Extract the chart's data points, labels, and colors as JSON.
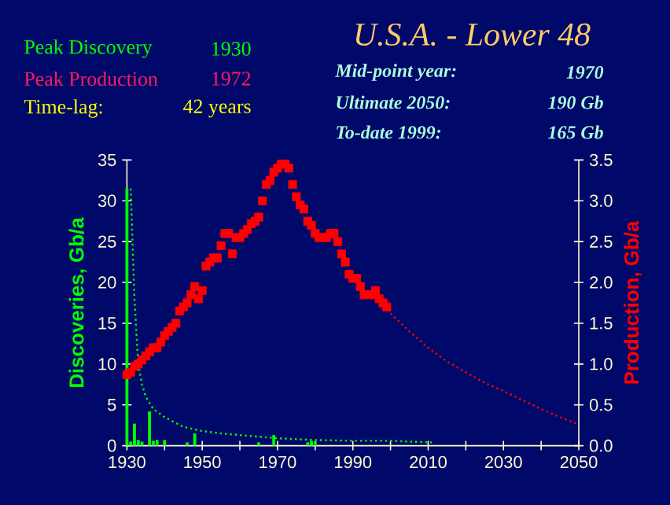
{
  "chart_data": {
    "type": "bar",
    "title": "U.S.A. - Lower 48",
    "annotations": [
      "Peak Discovery",
      "1930",
      "Peak Production",
      "1972",
      "Time-lag:",
      "42 years",
      "Mid-point year:",
      "1970",
      "Ultimate  2050:",
      "190 Gb",
      "To-date     1999:",
      "165 Gb"
    ],
    "ylabel": "Discoveries, Gb/a",
    "y2label": "Production, Gb/a",
    "xlim": [
      1930,
      2050
    ],
    "xticks": [
      1930,
      {
        "value": 1940,
        "label": null
      },
      1950,
      {
        "value": 1960,
        "label": null
      },
      1970,
      {
        "value": 1980,
        "label": null
      },
      1990,
      {
        "value": 2000,
        "label": null
      },
      2010,
      {
        "value": 2020,
        "label": null
      },
      2030,
      {
        "value": 2040,
        "label": null
      },
      2050
    ],
    "ylim": [
      0,
      35
    ],
    "yticks": [
      0,
      5,
      10,
      15,
      20,
      25,
      30,
      35
    ],
    "y2lim": [
      0,
      3.5
    ],
    "y2ticks": [
      {
        "value": 0,
        "label": "0.0"
      },
      0.5,
      {
        "value": 1,
        "label": "1.0"
      },
      1.5,
      {
        "value": 2,
        "label": "2.0"
      },
      2.5,
      {
        "value": 3,
        "label": "3.0"
      },
      3.5
    ],
    "series": [
      {
        "color": "#00ff00",
        "x": [
          1930,
          1931,
          1932,
          1933,
          1934,
          1936,
          1937,
          1938,
          1940,
          1946,
          1948,
          1965,
          1969,
          1978,
          1979,
          1980
        ],
        "values": [
          31.5,
          0.5,
          2.7,
          0.7,
          0.5,
          4.2,
          0.6,
          0.7,
          0.7,
          0.4,
          1.5,
          0.4,
          1.3,
          0.4,
          0.6,
          0.5
        ]
      },
      {
        "type": "line",
        "color": "#00ff00",
        "marker": "none",
        "line_style": "dotted",
        "x": [
          1931,
          1932,
          1933,
          1934,
          1935,
          1937,
          1940,
          1945,
          1950,
          1955,
          1960,
          1970,
          1980,
          1990,
          2000,
          2005,
          2011
        ],
        "values": [
          31.5,
          18,
          10,
          7.5,
          6,
          4.5,
          3.5,
          2.3,
          1.8,
          1.5,
          1.3,
          0.9,
          0.7,
          0.6,
          0.6,
          0.5,
          0.4
        ]
      },
      {
        "type": "scatter",
        "axis": "y2",
        "color": "#ff0000",
        "marker": "square",
        "x": [
          1930,
          1931,
          1932,
          1933,
          1934,
          1935,
          1936,
          1937,
          1938,
          1939,
          1940,
          1941,
          1942,
          1943,
          1944,
          1945,
          1946,
          1947,
          1948,
          1949,
          1950,
          1951,
          1952,
          1953,
          1954,
          1955,
          1956,
          1957,
          1958,
          1959,
          1960,
          1961,
          1962,
          1963,
          1964,
          1965,
          1966,
          1967,
          1968,
          1969,
          1970,
          1971,
          1972,
          1973,
          1974,
          1975,
          1976,
          1977,
          1978,
          1979,
          1980,
          1981,
          1982,
          1983,
          1984,
          1985,
          1986,
          1987,
          1988,
          1989,
          1990,
          1991,
          1992,
          1993,
          1994,
          1995,
          1996,
          1997,
          1998,
          1999
        ],
        "values": [
          0.87,
          0.9,
          0.97,
          1.0,
          1.05,
          1.1,
          1.15,
          1.2,
          1.2,
          1.27,
          1.35,
          1.4,
          1.45,
          1.5,
          1.65,
          1.7,
          1.75,
          1.85,
          1.95,
          1.8,
          1.9,
          2.2,
          2.25,
          2.3,
          2.3,
          2.45,
          2.6,
          2.6,
          2.35,
          2.55,
          2.55,
          2.6,
          2.65,
          2.72,
          2.75,
          2.8,
          3.0,
          3.2,
          3.25,
          3.35,
          3.4,
          3.45,
          3.45,
          3.4,
          3.2,
          3.05,
          2.95,
          2.9,
          2.75,
          2.7,
          2.6,
          2.55,
          2.55,
          2.55,
          2.6,
          2.6,
          2.5,
          2.35,
          2.25,
          2.1,
          2.05,
          2.05,
          1.95,
          1.85,
          1.85,
          1.85,
          1.9,
          1.8,
          1.75,
          1.7
        ]
      },
      {
        "type": "line",
        "axis": "y2",
        "color": "#ff0000",
        "marker": "none",
        "line_style": "dotted",
        "x": [
          2000,
          2005,
          2010,
          2015,
          2020,
          2025,
          2030,
          2035,
          2040,
          2045,
          2050
        ],
        "values": [
          1.62,
          1.4,
          1.2,
          1.03,
          0.9,
          0.77,
          0.67,
          0.56,
          0.45,
          0.35,
          0.26
        ]
      }
    ]
  }
}
